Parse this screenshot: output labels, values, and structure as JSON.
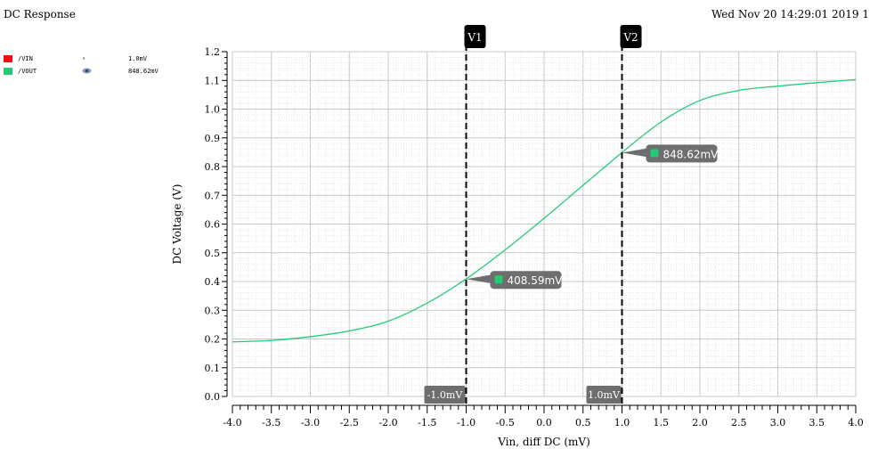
{
  "header": {
    "title": "DC Response",
    "datestamp": "Wed Nov 20 14:29:01 2019  1"
  },
  "legend": [
    {
      "name": "/VIN",
      "color": "#ee1111",
      "icon": "dot-icon",
      "value": "1.0mV"
    },
    {
      "name": "/VOUT",
      "color": "#22cc77",
      "icon": "eye-icon",
      "value": "848.62mV"
    }
  ],
  "chart_data": {
    "type": "line",
    "xlabel": "Vin, diff DC (mV)",
    "ylabel": "DC Voltage (V)",
    "xlim": [
      -4.0,
      4.0
    ],
    "ylim": [
      0.0,
      1.2
    ],
    "xticks": [
      "-4.0",
      "-3.5",
      "-3.0",
      "-2.5",
      "-2.0",
      "-1.5",
      "-1.0",
      "-0.5",
      "0.0",
      "0.5",
      "1.0",
      "1.5",
      "2.0",
      "2.5",
      "3.0",
      "3.5",
      "4.0"
    ],
    "yticks": [
      "0.0",
      "0.1",
      "0.2",
      "0.3",
      "0.4",
      "0.5",
      "0.6",
      "0.7",
      "0.8",
      "0.9",
      "1.0",
      "1.1",
      "1.2"
    ],
    "grid": true,
    "series": [
      {
        "name": "/VOUT",
        "color": "#22cc77",
        "x": [
          -4.0,
          -3.5,
          -3.0,
          -2.5,
          -2.0,
          -1.5,
          -1.0,
          -0.5,
          0.0,
          0.5,
          1.0,
          1.5,
          2.0,
          2.5,
          3.0,
          3.5,
          4.0
        ],
        "y": [
          0.19,
          0.195,
          0.208,
          0.228,
          0.262,
          0.325,
          0.409,
          0.51,
          0.62,
          0.735,
          0.849,
          0.955,
          1.03,
          1.065,
          1.08,
          1.092,
          1.103
        ]
      }
    ],
    "cursors": [
      {
        "label": "V1",
        "x": -1.0,
        "x_label": "-1.0mV",
        "y": 0.40859,
        "y_label": "408.59mV"
      },
      {
        "label": "V2",
        "x": 1.0,
        "x_label": "1.0mV",
        "y": 0.84862,
        "y_label": "848.62mV"
      }
    ]
  }
}
